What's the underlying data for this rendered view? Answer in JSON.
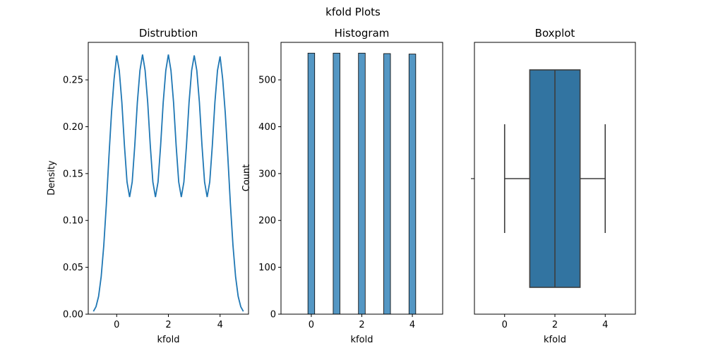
{
  "chart_data": {
    "suptitle": "kfold Plots",
    "subplots": [
      {
        "type": "line",
        "title": "Distrubtion",
        "xlabel": "kfold",
        "ylabel": "Density",
        "xlim": [
          -1.1,
          5.1
        ],
        "ylim": [
          0.0,
          0.29
        ],
        "x_ticks": [
          0,
          2,
          4
        ],
        "y_ticks": [
          0.0,
          0.05,
          0.1,
          0.15,
          0.2,
          0.25
        ],
        "y_tick_labels": [
          "0.00",
          "0.05",
          "0.10",
          "0.15",
          "0.20",
          "0.25"
        ],
        "color": "#1f77b4",
        "series": [
          {
            "x": [
              -0.9,
              -0.8,
              -0.7,
              -0.6,
              -0.5,
              -0.4,
              -0.3,
              -0.2,
              -0.1,
              0.0,
              0.1,
              0.2,
              0.3,
              0.4,
              0.5,
              0.6,
              0.7,
              0.8,
              0.9,
              1.0,
              1.1,
              1.2,
              1.3,
              1.4,
              1.5,
              1.6,
              1.7,
              1.8,
              1.9,
              2.0,
              2.1,
              2.2,
              2.3,
              2.4,
              2.5,
              2.6,
              2.7,
              2.8,
              2.9,
              3.0,
              3.1,
              3.2,
              3.3,
              3.4,
              3.5,
              3.6,
              3.7,
              3.8,
              3.9,
              4.0,
              4.1,
              4.2,
              4.3,
              4.4,
              4.5,
              4.6,
              4.7,
              4.8,
              4.9
            ],
            "y": [
              0.003,
              0.008,
              0.019,
              0.04,
              0.073,
              0.117,
              0.168,
              0.215,
              0.251,
              0.276,
              0.26,
              0.226,
              0.18,
              0.141,
              0.125,
              0.141,
              0.18,
              0.226,
              0.26,
              0.277,
              0.26,
              0.226,
              0.18,
              0.141,
              0.125,
              0.141,
              0.18,
              0.226,
              0.26,
              0.277,
              0.26,
              0.226,
              0.18,
              0.141,
              0.125,
              0.141,
              0.18,
              0.226,
              0.26,
              0.276,
              0.26,
              0.226,
              0.18,
              0.141,
              0.125,
              0.141,
              0.18,
              0.226,
              0.26,
              0.275,
              0.251,
              0.215,
              0.168,
              0.117,
              0.073,
              0.04,
              0.019,
              0.008,
              0.003
            ]
          }
        ]
      },
      {
        "type": "bar",
        "title": "Histogram",
        "xlabel": "kfold",
        "ylabel": "Count",
        "xlim": [
          -1.2,
          5.2
        ],
        "ylim": [
          0,
          580
        ],
        "x_ticks": [
          0,
          2,
          4
        ],
        "y_ticks": [
          0,
          100,
          200,
          300,
          400,
          500
        ],
        "bar_width": 0.267,
        "color": "#5497c4",
        "edge_color": "#000000",
        "series": [
          {
            "x": [
              0,
              1,
              2,
              3,
              4
            ],
            "values": [
              557,
              557,
              557,
              556,
              555
            ]
          }
        ]
      },
      {
        "type": "box",
        "title": "Boxplot",
        "xlabel": "kfold",
        "xlim": [
          -1.2,
          5.2
        ],
        "x_ticks": [
          0,
          2,
          4
        ],
        "color": "#3274a1",
        "line_color": "#3d3d3d",
        "box": {
          "min": 0,
          "q1": 1,
          "median": 2,
          "q3": 3,
          "max": 4
        }
      }
    ]
  }
}
